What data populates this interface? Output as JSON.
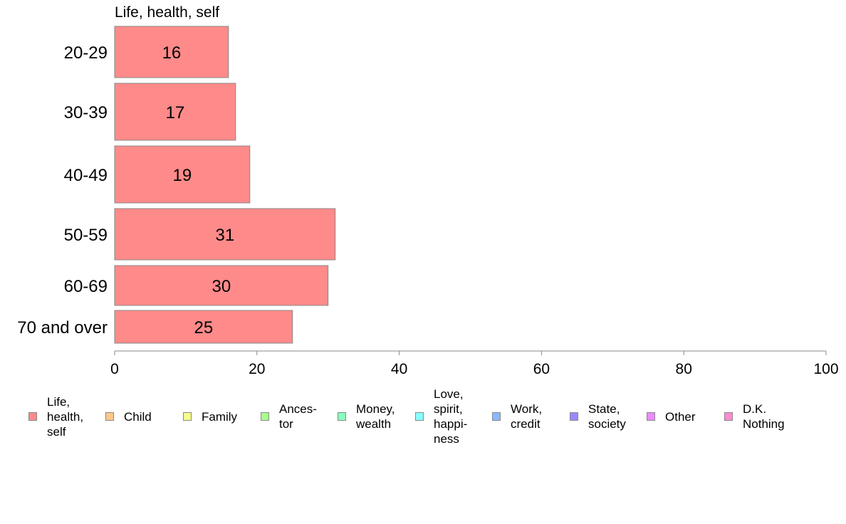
{
  "chart_data": {
    "type": "bar",
    "orientation": "horizontal",
    "panel_title": "Life, health, self",
    "categories": [
      "20-29",
      "30-39",
      "40-49",
      "50-59",
      "60-69",
      "70 and over"
    ],
    "series": [
      {
        "name": "Life, health, self",
        "values": [
          16,
          17,
          19,
          31,
          30,
          25
        ]
      }
    ],
    "xlim": [
      0,
      100
    ],
    "xticks": [
      0,
      20,
      40,
      60,
      80,
      100
    ],
    "grid": false,
    "legend_placement": "bottom",
    "legend": [
      {
        "label": "Life,\nhealth,\nself",
        "color": "#ff8a8a"
      },
      {
        "label": "Child",
        "color": "#ffc88a"
      },
      {
        "label": "Family",
        "color": "#f3ff8a"
      },
      {
        "label": "Ances-\ntor",
        "color": "#a8ff8a"
      },
      {
        "label": "Money,\nwealth",
        "color": "#8affbe"
      },
      {
        "label": "Love,\nspirit,\nhappi-\nness",
        "color": "#8affff"
      },
      {
        "label": "Work,\ncredit",
        "color": "#8abaff"
      },
      {
        "label": "State,\nsociety",
        "color": "#9a8aff"
      },
      {
        "label": "Other",
        "color": "#ec8aff"
      },
      {
        "label": "D.K.\nNothing",
        "color": "#ff8ad0"
      }
    ]
  }
}
